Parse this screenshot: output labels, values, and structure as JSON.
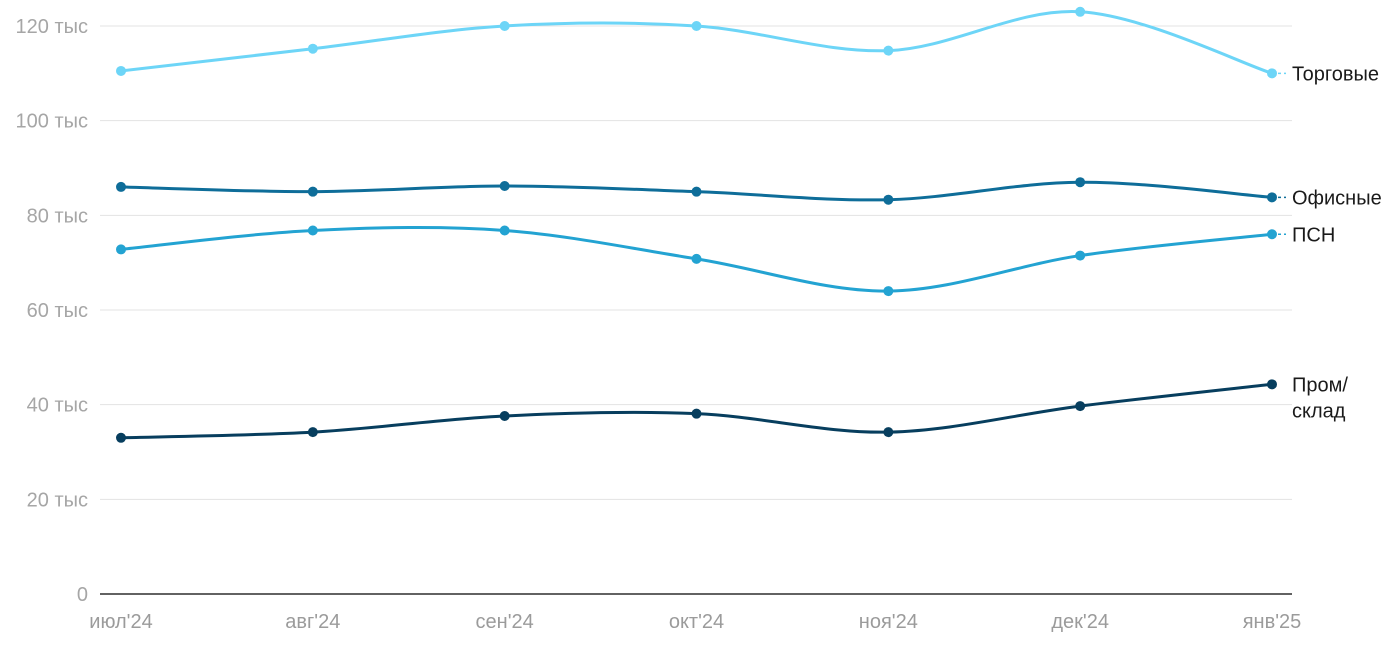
{
  "chart_data": {
    "type": "line",
    "title": "",
    "xlabel": "",
    "ylabel": "",
    "x": [
      "июл'24",
      "авг'24",
      "сен'24",
      "окт'24",
      "ноя'24",
      "дек'24",
      "янв'25"
    ],
    "ylim": [
      0,
      125000
    ],
    "yticks": [
      {
        "value": 0,
        "label": "0"
      },
      {
        "value": 20000,
        "label": "20 тыс"
      },
      {
        "value": 40000,
        "label": "40 тыс"
      },
      {
        "value": 60000,
        "label": "60 тыс"
      },
      {
        "value": 80000,
        "label": "80 тыс"
      },
      {
        "value": 100000,
        "label": "100 тыс"
      },
      {
        "value": 120000,
        "label": "120 тыс"
      }
    ],
    "grid": true,
    "legend": "inline-right",
    "series": [
      {
        "name": "Торговые",
        "label_lines": [
          "Торговые"
        ],
        "color": "#6dd5f7",
        "values": [
          110500,
          115200,
          120000,
          120000,
          114800,
          123000,
          110000
        ]
      },
      {
        "name": "Офисные",
        "label_lines": [
          "Офисные"
        ],
        "color": "#0e6d99",
        "values": [
          86000,
          85000,
          86200,
          85000,
          83300,
          87000,
          83800
        ]
      },
      {
        "name": "ПСН",
        "label_lines": [
          "ПСН"
        ],
        "color": "#23a3d2",
        "values": [
          72800,
          76800,
          76800,
          70800,
          64000,
          71500,
          76000
        ]
      },
      {
        "name": "Пром/склад",
        "label_lines": [
          "Пром/",
          "склад"
        ],
        "color": "#073e5e",
        "values": [
          33000,
          34200,
          37600,
          38100,
          34200,
          39700,
          44300
        ]
      }
    ]
  }
}
